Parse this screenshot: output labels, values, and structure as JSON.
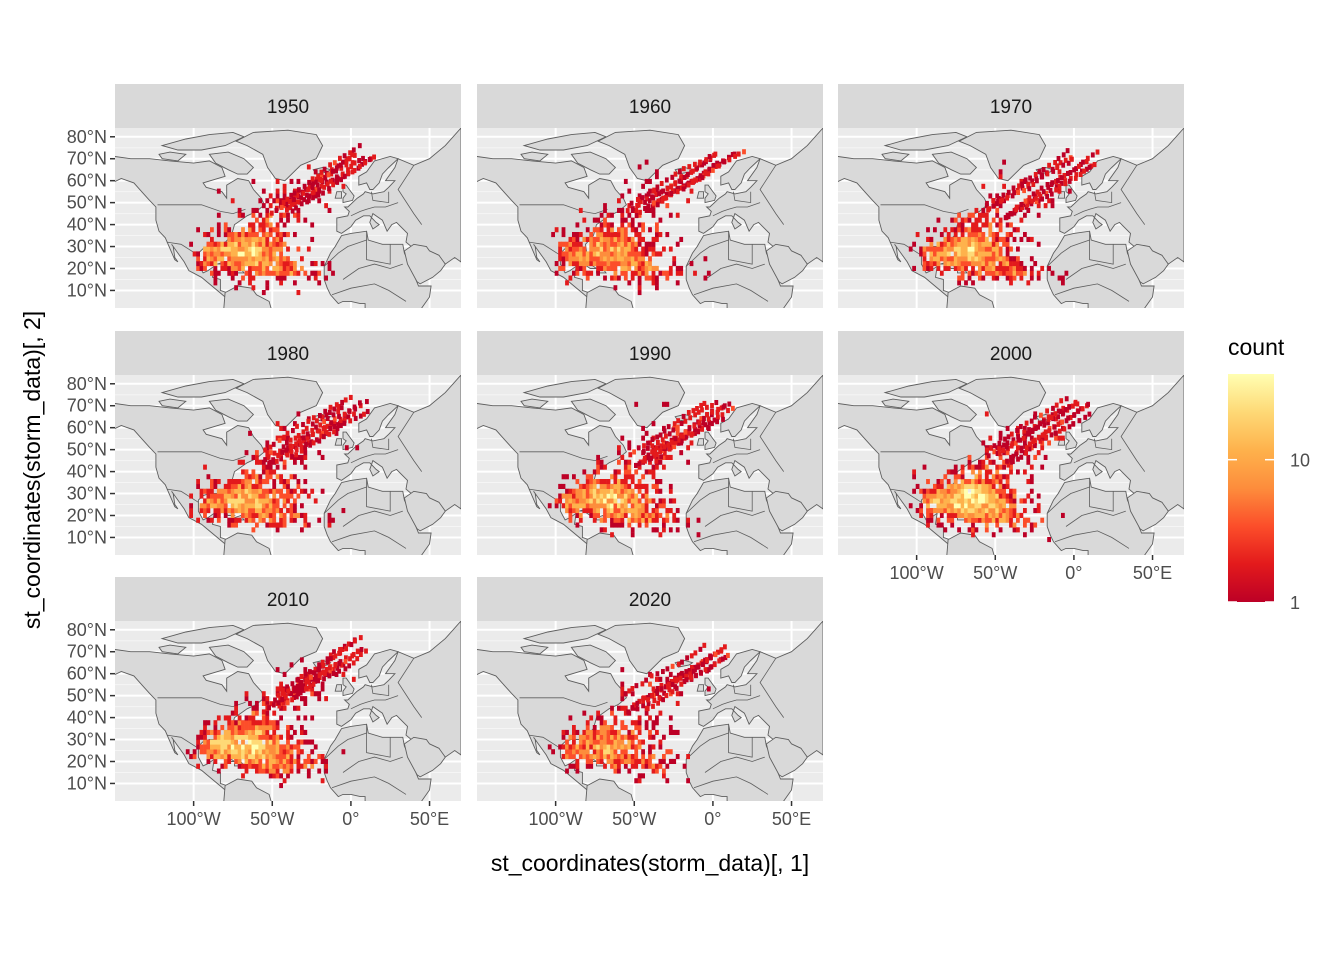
{
  "chart_data": {
    "type": "heatmap",
    "x_axis_title": "st_coordinates(storm_data)[, 1]",
    "y_axis_title": "st_coordinates(storm_data)[, 2]",
    "x_ticks": [
      {
        "value": -100,
        "label": "100°W"
      },
      {
        "value": -50,
        "label": "50°W"
      },
      {
        "value": 0,
        "label": "0°"
      },
      {
        "value": 50,
        "label": "50°E"
      }
    ],
    "y_ticks": [
      {
        "value": 10,
        "label": "10°N"
      },
      {
        "value": 20,
        "label": "20°N"
      },
      {
        "value": 30,
        "label": "30°N"
      },
      {
        "value": 40,
        "label": "40°N"
      },
      {
        "value": 50,
        "label": "50°N"
      },
      {
        "value": 60,
        "label": "60°N"
      },
      {
        "value": 70,
        "label": "70°N"
      },
      {
        "value": 80,
        "label": "80°N"
      }
    ],
    "facets": [
      "1950",
      "1960",
      "1970",
      "1980",
      "1990",
      "2000",
      "2010",
      "2020"
    ],
    "legend": {
      "title": "count",
      "scale": "log",
      "breaks": [
        {
          "value": 1,
          "label": "1"
        },
        {
          "value": 10,
          "label": "10"
        }
      ],
      "colors": [
        "#bd0026",
        "#e31a1c",
        "#fc4e2a",
        "#fd8d3c",
        "#feb24c",
        "#fed976",
        "#ffffb2"
      ],
      "range": [
        1,
        40
      ]
    },
    "xlim": [
      -150,
      70
    ],
    "ylim": [
      2,
      84
    ],
    "grid": true,
    "legend_position": "right"
  }
}
